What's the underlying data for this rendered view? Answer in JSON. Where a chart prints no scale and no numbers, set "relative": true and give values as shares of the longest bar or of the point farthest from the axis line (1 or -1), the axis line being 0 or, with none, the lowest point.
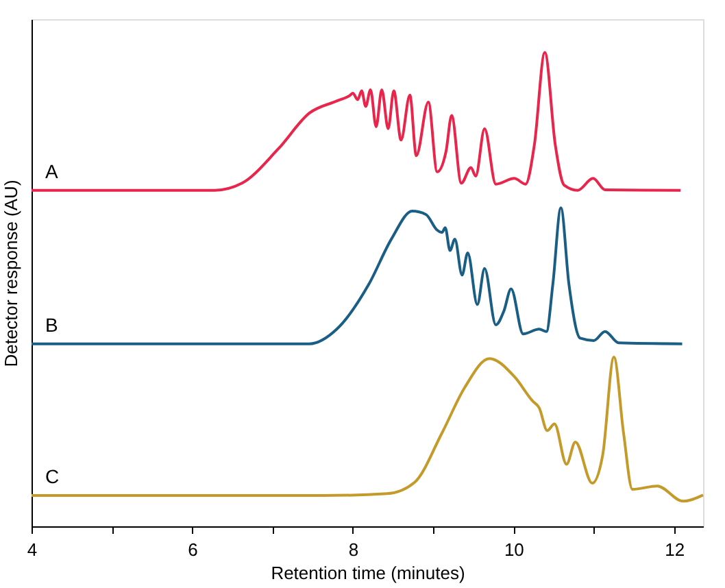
{
  "chart_data": {
    "type": "line",
    "relative": true,
    "xlabel": "Retention time (minutes)",
    "ylabel": "Detector response (AU)",
    "xlim": [
      4,
      12.36
    ],
    "xticks": [
      4,
      {
        "value": 5,
        "label": null
      },
      6,
      {
        "value": 7,
        "label": null
      },
      8,
      {
        "value": 9,
        "label": null
      },
      10,
      {
        "value": 11,
        "label": null
      },
      12
    ],
    "grid": false,
    "legend": false,
    "marker": "none",
    "line_style": "solid",
    "series": [
      {
        "name": "A",
        "color": "#e8254a",
        "x": [
          4,
          5.94,
          6.28,
          6.62,
          7.07,
          7.46,
          7.81,
          7.97,
          8.0,
          8.06,
          8.11,
          8.16,
          8.22,
          8.29,
          8.36,
          8.44,
          8.51,
          8.6,
          8.71,
          8.79,
          8.94,
          9.05,
          9.16,
          9.23,
          9.35,
          9.47,
          9.53,
          9.64,
          9.78,
          10.01,
          10.15,
          10.26,
          10.39,
          10.52,
          10.63,
          10.8,
          10.99,
          11.14,
          12.08
        ],
        "values": [
          0.709,
          0.709,
          0.709,
          0.724,
          0.796,
          0.872,
          0.898,
          0.91,
          0.914,
          0.9,
          0.919,
          0.886,
          0.921,
          0.843,
          0.921,
          0.839,
          0.919,
          0.815,
          0.91,
          0.782,
          0.895,
          0.748,
          0.791,
          0.867,
          0.724,
          0.757,
          0.739,
          0.839,
          0.722,
          0.734,
          0.722,
          0.805,
          1.0,
          0.805,
          0.72,
          0.709,
          0.734,
          0.71,
          0.709
        ]
      },
      {
        "name": "B",
        "color": "#1a5e85",
        "x": [
          4,
          6.78,
          7.46,
          7.8,
          8.2,
          8.48,
          8.74,
          8.91,
          9.05,
          9.11,
          9.15,
          9.21,
          9.27,
          9.36,
          9.43,
          9.55,
          9.64,
          9.78,
          9.88,
          9.97,
          10.12,
          10.32,
          10.41,
          10.49,
          10.59,
          10.69,
          10.83,
          11.0,
          11.14,
          11.31,
          12.1
        ],
        "values": [
          0.385,
          0.385,
          0.385,
          0.416,
          0.511,
          0.606,
          0.665,
          0.658,
          0.625,
          0.62,
          0.63,
          0.582,
          0.606,
          0.53,
          0.577,
          0.468,
          0.544,
          0.425,
          0.454,
          0.501,
          0.406,
          0.416,
          0.411,
          0.511,
          0.672,
          0.511,
          0.397,
          0.392,
          0.411,
          0.387,
          0.385
        ]
      },
      {
        "name": "C",
        "color": "#c49a2a",
        "x": [
          4,
          7.63,
          8.43,
          8.77,
          9.11,
          9.39,
          9.7,
          10.01,
          10.24,
          10.32,
          10.42,
          10.51,
          10.66,
          10.77,
          10.98,
          11.11,
          11.25,
          11.37,
          11.48,
          11.79,
          12.11,
          12.36
        ],
        "values": [
          0.065,
          0.065,
          0.069,
          0.093,
          0.197,
          0.292,
          0.354,
          0.316,
          0.264,
          0.25,
          0.202,
          0.216,
          0.131,
          0.178,
          0.091,
          0.15,
          0.357,
          0.197,
          0.078,
          0.085,
          0.053,
          0.066
        ]
      }
    ]
  }
}
